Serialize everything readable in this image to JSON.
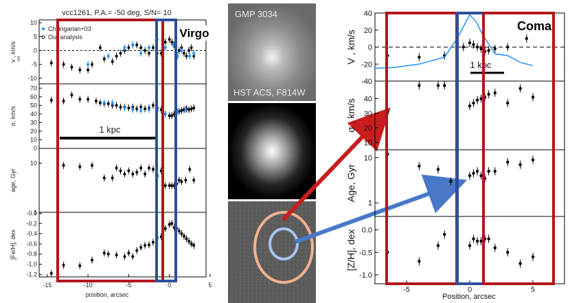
{
  "colors": {
    "red_box": "#b3151c",
    "blue_box": "#2f4f9b",
    "arrow_red": "#c81e1e",
    "arrow_blue": "#4a78c8",
    "fill_blue": "#1e90ff",
    "ellipse_outer": "#f3b28e",
    "ellipse_inner": "#a8c4ee"
  },
  "left": {
    "title": "vcc1261, P.A.= -50 deg, S/N= 10",
    "cluster": "Virgo",
    "legend": [
      "Chilingarian+03",
      "Our analysis"
    ],
    "ylabels": [
      "v , km/s",
      "σ, km/s",
      "age, Gyr",
      "[Fe/H], dex"
    ],
    "ylabel_sub": "rot",
    "xlabel": "position, arcsec",
    "xticks": [
      "-15",
      "-10",
      "-5",
      "0",
      "5"
    ],
    "scale_label": "1 kpc",
    "vrot_ticks": [
      "10",
      "5",
      "0",
      "-5",
      "-10"
    ],
    "sigma_ticks": [
      "70",
      "60",
      "50",
      "40",
      "30",
      "20",
      "10",
      "0"
    ],
    "age_ticks": [
      "10",
      "1"
    ],
    "feh_ticks": [
      "-0.0",
      "-0.2",
      "-0.4",
      "-0.6",
      "-0.8",
      "-1.0",
      "-1.2"
    ]
  },
  "middle": {
    "top_label": "GMP 3034",
    "bottom_label": "HST ACS, F814W"
  },
  "right": {
    "cluster": "Coma",
    "ylabels": [
      "V , km/s",
      "σ , km/s",
      "Age, Gyr",
      "[Z/H], dex"
    ],
    "ylabel_subs": [
      "R",
      "*"
    ],
    "xlabel": "Position, arcsec",
    "xticks": [
      "-5",
      "0",
      "5"
    ],
    "scale_label": "1 kpc",
    "vr_ticks": [
      "40",
      "20",
      "0",
      "-20",
      "-40"
    ],
    "sigma_ticks": [
      "40",
      "30",
      "20",
      "10"
    ],
    "age_ticks": [
      "10",
      "1"
    ],
    "zh_ticks": [
      "0.0",
      "-0.5",
      "-1.0"
    ]
  },
  "chart_data": [
    {
      "type": "scatter",
      "title": "vcc1261, P.A.= -50 deg, S/N= 10",
      "xlabel": "position, arcsec",
      "xlim": [
        -16,
        4.5
      ],
      "panels": [
        {
          "ylabel": "v_rot, km/s",
          "ylim": [
            -12,
            11
          ],
          "series": [
            {
              "name": "Our analysis",
              "x": [
                -14.5,
                -13,
                -12,
                -11,
                -10,
                -9.5,
                -8.5,
                -8,
                -7,
                -6.5,
                -6,
                -5.5,
                -5,
                -4.5,
                -4,
                -3.5,
                -3,
                -2.5,
                -2,
                -1.5,
                -1,
                -0.5,
                0,
                0.3,
                0.6,
                0.9,
                1.2,
                1.5,
                1.8,
                2.1,
                2.4,
                2.7,
                3
              ],
              "y": [
                -4.5,
                -5,
                -6,
                -7,
                -7,
                -5,
                1,
                -3,
                -4,
                -2,
                -1,
                0,
                1,
                2,
                2,
                1,
                0,
                -1,
                1,
                -1,
                -1,
                3,
                4,
                3,
                2,
                -1,
                0,
                1,
                -1,
                -2,
                0,
                1,
                -2
              ]
            },
            {
              "name": "Chilingarian+03",
              "x": [
                -10,
                -7.5,
                -5.5,
                -4.5,
                -3.5,
                -2.5,
                -1.5,
                -0.5,
                0.5,
                1,
                1.5,
                2.5,
                3
              ],
              "y": [
                -5,
                -2,
                1,
                2,
                -1,
                1,
                4,
                1,
                2,
                -2,
                0,
                -2,
                -1
              ]
            }
          ]
        },
        {
          "ylabel": "σ, km/s",
          "ylim": [
            0,
            75
          ],
          "series": [
            {
              "name": "Our analysis",
              "x": [
                -14.5,
                -13,
                -12,
                -11,
                -10,
                -9,
                -8.5,
                -8,
                -7.5,
                -7,
                -6.5,
                -6,
                -5.5,
                -5,
                -4.5,
                -4,
                -3.5,
                -3,
                -2.5,
                -2,
                -1.5,
                -1,
                -0.5,
                0,
                0.3,
                0.6,
                0.9,
                1.2,
                1.5,
                1.8,
                2.1,
                2.4,
                2.7,
                3
              ],
              "y": [
                56,
                55,
                62,
                57,
                57,
                55,
                53,
                52,
                52,
                50,
                50,
                48,
                48,
                47,
                48,
                46,
                48,
                46,
                47,
                50,
                47,
                45,
                40,
                38,
                38,
                40,
                42,
                43,
                44,
                45,
                46,
                45,
                46,
                47
              ]
            },
            {
              "name": "Chilingarian+03",
              "x": [
                -8,
                -7,
                -5.5,
                -4.5,
                -3.5,
                -2.5,
                -1.5,
                -0.5,
                1,
                2
              ],
              "y": [
                53,
                53,
                47,
                45,
                44,
                45,
                44,
                40,
                43,
                45
              ]
            }
          ]
        },
        {
          "ylabel": "age, Gyr",
          "yscale": "log",
          "ylim": [
            1,
            20
          ],
          "series": [
            {
              "name": "Our analysis",
              "x": [
                -13,
                -11,
                -9.5,
                -8,
                -7,
                -6.5,
                -6,
                -5.5,
                -5,
                -4.5,
                -4,
                -3.5,
                -3,
                -2.5,
                -2,
                -1.5,
                -1,
                -0.5,
                0,
                0.3,
                0.6,
                0.9,
                1.2,
                1.5,
                2,
                2.5,
                3
              ],
              "y": [
                9,
                8.5,
                9,
                5,
                5,
                8,
                7,
                6,
                7,
                6,
                6.5,
                8,
                6,
                8,
                7.5,
                5.5,
                7,
                3.5,
                3.5,
                3.5,
                3.5,
                3.8,
                4.5,
                4.2,
                4.5,
                7.5,
                4.5
              ]
            }
          ]
        },
        {
          "ylabel": "[Fe/H], dex",
          "ylim": [
            -1.25,
            0.02
          ],
          "series": [
            {
              "name": "Our analysis",
              "x": [
                -14.5,
                -13,
                -11,
                -9.5,
                -8,
                -7.5,
                -6.5,
                -5.5,
                -5,
                -4.5,
                -4,
                -3.5,
                -3,
                -2.5,
                -2,
                -1.5,
                -1,
                -0.5,
                0,
                0.3,
                0.6,
                0.9,
                1.2,
                1.5,
                1.8,
                2.1,
                2.4,
                2.7,
                3
              ],
              "y": [
                -1.18,
                -1.02,
                -1.03,
                -0.92,
                -0.78,
                -0.8,
                -0.82,
                -0.85,
                -0.78,
                -0.85,
                -0.73,
                -0.67,
                -0.63,
                -0.62,
                -0.57,
                -0.48,
                -0.46,
                -0.3,
                -0.22,
                -0.2,
                -0.28,
                -0.3,
                -0.35,
                -0.4,
                -0.45,
                -0.5,
                -0.55,
                -0.6,
                -0.63
              ]
            }
          ]
        }
      ]
    },
    {
      "type": "scatter",
      "xlabel": "Position, arcsec",
      "xlim": [
        -7.5,
        7.5
      ],
      "panels": [
        {
          "ylabel": "V_R*, km/s",
          "ylim": [
            -40,
            40
          ],
          "series": [
            {
              "name": "points",
              "x": [
                -6.5,
                -4,
                -2,
                -0.5,
                0,
                0.3,
                0.6,
                0.9,
                1.2,
                1.5,
                2,
                3,
                4.5
              ],
              "y": [
                -10,
                -12,
                -10,
                0,
                5,
                3,
                0,
                -2,
                -5,
                -4,
                -2,
                0,
                10
              ]
            },
            {
              "name": "line",
              "x": [
                -7.5,
                -6,
                -4,
                -2,
                -1,
                0,
                0.5,
                1,
                2,
                3,
                4,
                5
              ],
              "y": [
                -25,
                -24,
                -20,
                -12,
                10,
                38,
                30,
                15,
                -8,
                -10,
                -18,
                -22
              ]
            }
          ]
        },
        {
          "ylabel": "σ*, km/s",
          "ylim": [
            5,
            52
          ],
          "series": [
            {
              "name": "points",
              "x": [
                -6.5,
                -4,
                -2.5,
                -2,
                -1,
                0,
                0.3,
                0.6,
                0.9,
                1.2,
                1.5,
                2,
                3,
                4,
                5
              ],
              "y": [
                31,
                49,
                49,
                49,
                40,
                35,
                37,
                39,
                40,
                41,
                43,
                44,
                37,
                47,
                41
              ]
            }
          ]
        },
        {
          "ylabel": "Age, Gyr",
          "yscale": "log",
          "ylim": [
            0.5,
            15
          ],
          "series": [
            {
              "name": "points",
              "x": [
                -6.5,
                -4,
                -2.5,
                -1.5,
                -1,
                0,
                0.3,
                0.6,
                0.9,
                1.2,
                1.5,
                2,
                3,
                4,
                5
              ],
              "y": [
                12,
                6.5,
                5.5,
                3,
                12,
                4,
                4.5,
                5,
                4,
                3.5,
                5,
                5,
                8,
                7,
                9
              ]
            }
          ]
        },
        {
          "ylabel": "[Z/H], dex",
          "ylim": [
            -1.2,
            0.3
          ],
          "series": [
            {
              "name": "points",
              "x": [
                -6.5,
                -4,
                -2.5,
                -2,
                -1,
                0,
                0.3,
                0.6,
                0.9,
                1.2,
                1.5,
                2,
                3,
                4,
                5
              ],
              "y": [
                -0.5,
                -0.7,
                -0.35,
                -0.1,
                -0.6,
                -0.35,
                -0.2,
                -0.25,
                -0.25,
                -0.2,
                -0.2,
                -0.4,
                -0.5,
                -0.75,
                -0.6
              ]
            }
          ]
        }
      ]
    }
  ]
}
